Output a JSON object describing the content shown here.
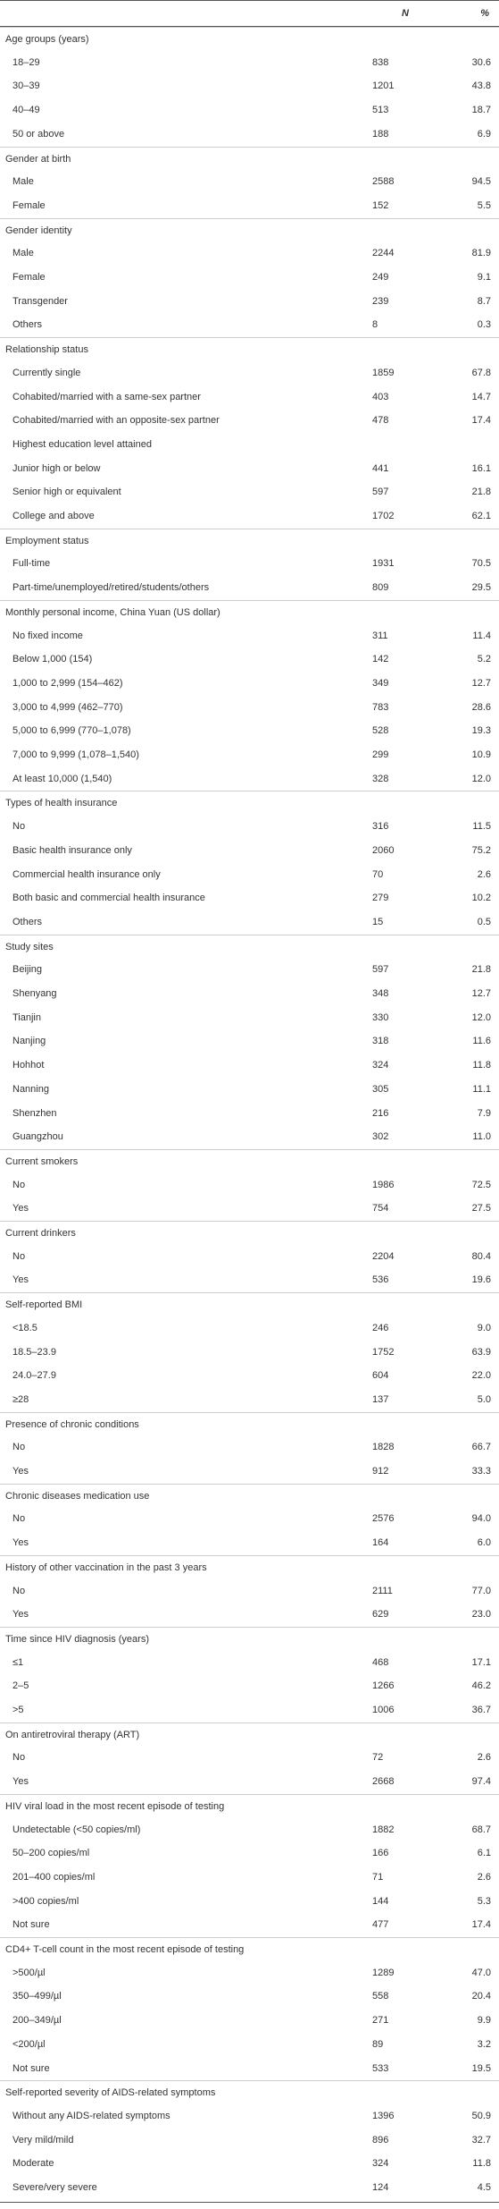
{
  "table": {
    "header": [
      "N",
      "%"
    ],
    "groups": [
      {
        "title": "Age groups (years)",
        "rows": [
          [
            "18–29",
            "838",
            "30.6"
          ],
          [
            "30–39",
            "1201",
            "43.8"
          ],
          [
            "40–49",
            "513",
            "18.7"
          ],
          [
            "50 or above",
            "188",
            "6.9"
          ]
        ]
      },
      {
        "title": "Gender at birth",
        "rows": [
          [
            "Male",
            "2588",
            "94.5"
          ],
          [
            "Female",
            "152",
            "5.5"
          ]
        ]
      },
      {
        "title": "Gender identity",
        "rows": [
          [
            "Male",
            "2244",
            "81.9"
          ],
          [
            "Female",
            "249",
            "9.1"
          ],
          [
            "Transgender",
            "239",
            "8.7"
          ],
          [
            "Others",
            "8",
            "0.3"
          ]
        ]
      },
      {
        "title": "Relationship status",
        "rows": [
          [
            "Currently single",
            "1859",
            "67.8"
          ],
          [
            "Cohabited/married with a same-sex partner",
            "403",
            "14.7"
          ],
          [
            "Cohabited/married with an opposite-sex partner",
            "478",
            "17.4"
          ],
          [
            "Highest education level attained"
          ],
          [
            "Junior high or below",
            "441",
            "16.1"
          ],
          [
            "Senior high or equivalent",
            "597",
            "21.8"
          ],
          [
            "College and above",
            "1702",
            "62.1"
          ]
        ]
      },
      {
        "title": "Employment status",
        "rows": [
          [
            "Full-time",
            "1931",
            "70.5"
          ],
          [
            "Part-time/unemployed/retired/students/others",
            "809",
            "29.5"
          ]
        ]
      },
      {
        "title": "Monthly personal income, China Yuan (US dollar)",
        "rows": [
          [
            "No fixed income",
            "311",
            "11.4"
          ],
          [
            "Below 1,000 (154)",
            "142",
            "5.2"
          ],
          [
            "1,000 to 2,999 (154–462)",
            "349",
            "12.7"
          ],
          [
            "3,000 to 4,999 (462–770)",
            "783",
            "28.6"
          ],
          [
            "5,000 to 6,999 (770–1,078)",
            "528",
            "19.3"
          ],
          [
            "7,000 to 9,999 (1,078–1,540)",
            "299",
            "10.9"
          ],
          [
            "At least 10,000 (1,540)",
            "328",
            "12.0"
          ]
        ]
      },
      {
        "title": "Types of health insurance",
        "rows": [
          [
            "No",
            "316",
            "11.5"
          ],
          [
            "Basic health insurance only",
            "2060",
            "75.2"
          ],
          [
            "Commercial health insurance only",
            "70",
            "2.6"
          ],
          [
            "Both basic and commercial health insurance",
            "279",
            "10.2"
          ],
          [
            "Others",
            "15",
            "0.5"
          ]
        ]
      },
      {
        "title": "Study sites",
        "rows": [
          [
            "Beijing",
            "597",
            "21.8"
          ],
          [
            "Shenyang",
            "348",
            "12.7"
          ],
          [
            "Tianjin",
            "330",
            "12.0"
          ],
          [
            "Nanjing",
            "318",
            "11.6"
          ],
          [
            "Hohhot",
            "324",
            "11.8"
          ],
          [
            "Nanning",
            "305",
            "11.1"
          ],
          [
            "Shenzhen",
            "216",
            "7.9"
          ],
          [
            "Guangzhou",
            "302",
            "11.0"
          ]
        ]
      },
      {
        "title": "Current smokers",
        "rows": [
          [
            "No",
            "1986",
            "72.5"
          ],
          [
            "Yes",
            "754",
            "27.5"
          ]
        ]
      },
      {
        "title": "Current drinkers",
        "rows": [
          [
            "No",
            "2204",
            "80.4"
          ],
          [
            "Yes",
            "536",
            "19.6"
          ]
        ]
      },
      {
        "title": "Self-reported BMI",
        "rows": [
          [
            "<18.5",
            "246",
            "9.0"
          ],
          [
            "18.5–23.9",
            "1752",
            "63.9"
          ],
          [
            "24.0–27.9",
            "604",
            "22.0"
          ],
          [
            "≥28",
            "137",
            "5.0"
          ]
        ]
      },
      {
        "title": "Presence of chronic conditions",
        "rows": [
          [
            "No",
            "1828",
            "66.7"
          ],
          [
            "Yes",
            "912",
            "33.3"
          ]
        ]
      },
      {
        "title": "Chronic diseases medication use",
        "rows": [
          [
            "No",
            "2576",
            "94.0"
          ],
          [
            "Yes",
            "164",
            "6.0"
          ]
        ]
      },
      {
        "title": "History of other vaccination in the past 3 years",
        "rows": [
          [
            "No",
            "2111",
            "77.0"
          ],
          [
            "Yes",
            "629",
            "23.0"
          ]
        ]
      },
      {
        "title": "Time since HIV diagnosis (years)",
        "rows": [
          [
            "≤1",
            "468",
            "17.1"
          ],
          [
            "2–5",
            "1266",
            "46.2"
          ],
          [
            ">5",
            "1006",
            "36.7"
          ]
        ]
      },
      {
        "title": "On antiretroviral therapy (ART)",
        "rows": [
          [
            "No",
            "72",
            "2.6"
          ],
          [
            "Yes",
            "2668",
            "97.4"
          ]
        ]
      },
      {
        "title": "HIV viral load in the most recent episode of testing",
        "rows": [
          [
            "Undetectable (<50 copies/ml)",
            "1882",
            "68.7"
          ],
          [
            "50–200 copies/ml",
            "166",
            "6.1"
          ],
          [
            "201–400 copies/ml",
            "71",
            "2.6"
          ],
          [
            ">400 copies/ml",
            "144",
            "5.3"
          ],
          [
            "Not sure",
            "477",
            "17.4"
          ]
        ]
      },
      {
        "title": "CD4+ T-cell count in the most recent episode of testing",
        "rows": [
          [
            ">500/µl",
            "1289",
            "47.0"
          ],
          [
            "350–499/µl",
            "558",
            "20.4"
          ],
          [
            "200–349/µl",
            "271",
            "9.9"
          ],
          [
            "<200/µl",
            "89",
            "3.2"
          ],
          [
            "Not sure",
            "533",
            "19.5"
          ]
        ]
      },
      {
        "title": "Self-reported severity of AIDS-related symptoms",
        "rows": [
          [
            "Without any AIDS-related symptoms",
            "1396",
            "50.9"
          ],
          [
            "Very mild/mild",
            "896",
            "32.7"
          ],
          [
            "Moderate",
            "324",
            "11.8"
          ],
          [
            "Severe/very severe",
            "124",
            "4.5"
          ]
        ]
      }
    ]
  }
}
